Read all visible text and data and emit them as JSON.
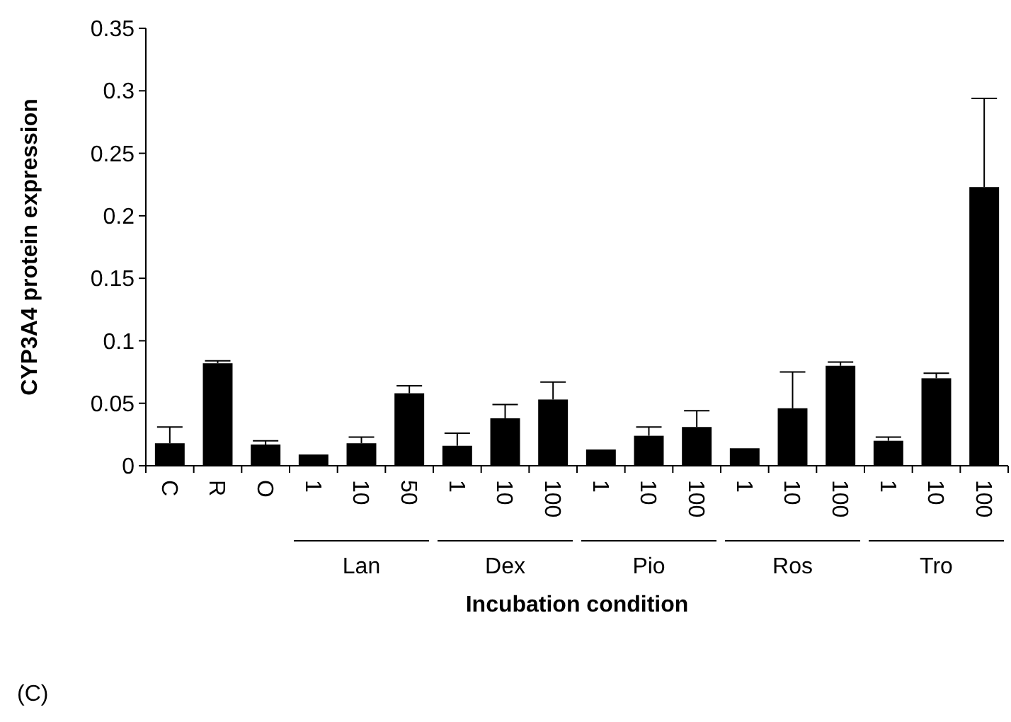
{
  "chart_data": {
    "type": "bar",
    "xlabel": "Incubation condition",
    "ylabel": "CYP3A4 protein expression",
    "categories": [
      "C",
      "R",
      "O",
      "1",
      "10",
      "50",
      "1",
      "10",
      "100",
      "1",
      "10",
      "100",
      "1",
      "10",
      "100",
      "1",
      "10",
      "100"
    ],
    "values": [
      0.018,
      0.082,
      0.017,
      0.009,
      0.018,
      0.058,
      0.016,
      0.038,
      0.053,
      0.013,
      0.024,
      0.031,
      0.014,
      0.046,
      0.08,
      0.02,
      0.07,
      0.223
    ],
    "errors": [
      [
        0.018,
        0.031
      ],
      [
        0.082,
        0.084
      ],
      [
        0.017,
        0.02
      ],
      null,
      [
        0.018,
        0.023
      ],
      [
        0.058,
        0.064
      ],
      [
        0.016,
        0.026
      ],
      [
        0.038,
        0.049
      ],
      [
        0.053,
        0.067
      ],
      null,
      [
        0.024,
        0.031
      ],
      [
        0.031,
        0.044
      ],
      null,
      [
        0.046,
        0.075
      ],
      [
        0.08,
        0.083
      ],
      [
        0.02,
        0.023
      ],
      [
        0.07,
        0.074
      ],
      [
        0.223,
        0.294
      ]
    ],
    "color": "#000000",
    "ylim": [
      0,
      0.35
    ],
    "yticks": [
      0,
      0.05,
      0.1,
      0.15,
      0.2,
      0.25,
      0.3,
      0.35
    ],
    "annotations": [
      "Lan",
      "Dex",
      "Pio",
      "Ros",
      "Tro",
      "(C)"
    ],
    "grid": false
  }
}
